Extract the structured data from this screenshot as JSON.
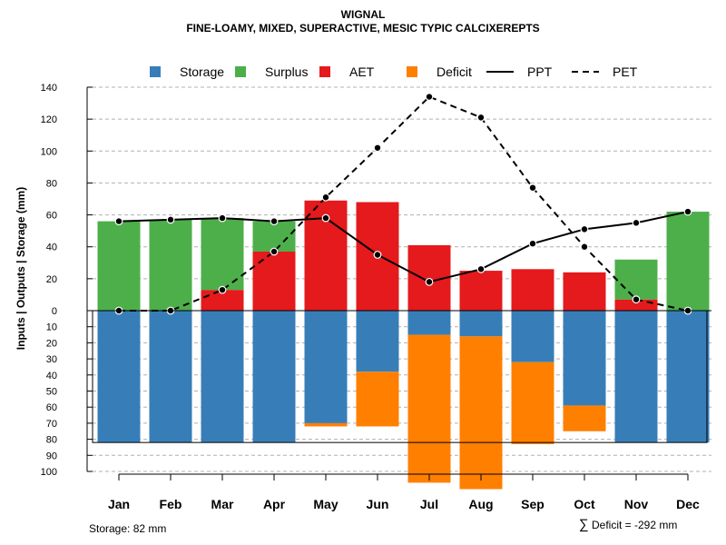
{
  "chart_data": {
    "type": "bar",
    "title": "WIGNAL",
    "subtitle": "FINE-LOAMY, MIXED, SUPERACTIVE, MESIC TYPIC CALCIXEREPTS",
    "ylabel": "Inputs | Outputs | Storage    (mm)",
    "categories": [
      "Jan",
      "Feb",
      "Mar",
      "Apr",
      "May",
      "Jun",
      "Jul",
      "Aug",
      "Sep",
      "Oct",
      "Nov",
      "Dec"
    ],
    "upper_axis": {
      "ylim": [
        0,
        140
      ],
      "ticks": [
        "0",
        "20",
        "40",
        "60",
        "80",
        "100",
        "120",
        "140"
      ]
    },
    "lower_axis": {
      "ylim": [
        0,
        100
      ],
      "ticks": [
        "10",
        "20",
        "30",
        "40",
        "50",
        "60",
        "70",
        "80",
        "90",
        "100"
      ]
    },
    "storage_capacity": 82,
    "series": [
      {
        "name": "Storage",
        "kind": "bar-down",
        "color": "#377eb8",
        "values": [
          82,
          82,
          82,
          82,
          70,
          38,
          15,
          16,
          32,
          59,
          82,
          82
        ]
      },
      {
        "name": "Surplus",
        "kind": "bar-up",
        "color": "#4daf4a",
        "values": [
          56,
          57,
          45,
          19,
          0,
          0,
          0,
          0,
          0,
          0,
          25,
          62
        ]
      },
      {
        "name": "AET",
        "kind": "bar-up",
        "color": "#e41a1c",
        "values": [
          0,
          0,
          13,
          37,
          69,
          68,
          41,
          25,
          26,
          24,
          7,
          0
        ]
      },
      {
        "name": "Deficit",
        "kind": "bar-down-stacked",
        "color": "#ff7f00",
        "values": [
          0,
          0,
          0,
          0,
          2,
          34,
          92,
          95,
          51,
          16,
          0,
          0
        ]
      },
      {
        "name": "PPT",
        "kind": "line-solid",
        "color": "#000000",
        "values": [
          56,
          57,
          58,
          56,
          58,
          35,
          18,
          26,
          42,
          51,
          55,
          62
        ]
      },
      {
        "name": "PET",
        "kind": "line-dashed",
        "color": "#000000",
        "values": [
          0,
          0,
          13,
          37,
          71,
          102,
          134,
          121,
          77,
          40,
          7,
          0
        ]
      }
    ],
    "legend": {
      "placement": "top",
      "entries": [
        {
          "label": "Storage",
          "symbol": "square",
          "color": "#377eb8"
        },
        {
          "label": "Surplus",
          "symbol": "square",
          "color": "#4daf4a"
        },
        {
          "label": "AET",
          "symbol": "square",
          "color": "#e41a1c"
        },
        {
          "label": "Deficit",
          "symbol": "square",
          "color": "#ff7f00"
        },
        {
          "label": "PPT",
          "symbol": "line-solid",
          "color": "#000000"
        },
        {
          "label": "PET",
          "symbol": "line-dashed",
          "color": "#000000"
        }
      ]
    },
    "grid": true
  },
  "footer": {
    "storage_note": "Storage: 82 mm",
    "sum_symbol": "∑",
    "deficit_note": "Deficit = -292 mm"
  }
}
